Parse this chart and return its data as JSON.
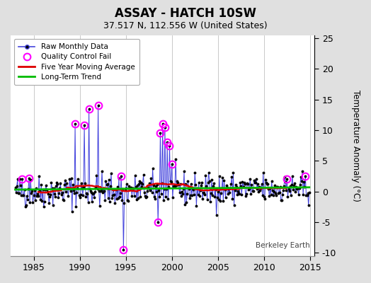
{
  "title": "ASSAY - HATCH 10SW",
  "subtitle": "37.517 N, 112.556 W (United States)",
  "ylabel_right": "Temperature Anomaly (°C)",
  "watermark": "Berkeley Earth",
  "xlim": [
    1982.5,
    2015.5
  ],
  "ylim": [
    -10.5,
    25.5
  ],
  "yticks": [
    -10,
    -5,
    0,
    5,
    10,
    15,
    20,
    25
  ],
  "xticks": [
    1985,
    1990,
    1995,
    2000,
    2005,
    2010,
    2015
  ],
  "bg_color": "#e0e0e0",
  "plot_bg_color": "#ffffff",
  "grid_color": "#c0c0c0",
  "raw_line_color": "#4444dd",
  "raw_dot_color": "#000000",
  "qc_fail_color": "#ff00ff",
  "moving_avg_color": "#dd0000",
  "trend_color": "#00bb00",
  "seed": 42,
  "years_start": 1983.0,
  "years_end": 2014.917,
  "noise_std": 1.3,
  "spike_events": [
    {
      "year": 1989.5,
      "val": 11.0,
      "qc": true
    },
    {
      "year": 1990.5,
      "val": 10.8,
      "qc": true
    },
    {
      "year": 1991.0,
      "val": 13.5,
      "qc": true
    },
    {
      "year": 1992.0,
      "val": 14.0,
      "qc": true
    },
    {
      "year": 1994.75,
      "val": -9.5,
      "qc": true
    },
    {
      "year": 1998.5,
      "val": -5.0,
      "qc": true
    },
    {
      "year": 1998.75,
      "val": 9.5,
      "qc": true
    },
    {
      "year": 1999.0,
      "val": 11.0,
      "qc": true
    },
    {
      "year": 1999.25,
      "val": 10.5,
      "qc": true
    },
    {
      "year": 1999.5,
      "val": 8.0,
      "qc": true
    },
    {
      "year": 1999.75,
      "val": 7.5,
      "qc": true
    },
    {
      "year": 2000.0,
      "val": 4.5,
      "qc": true
    },
    {
      "year": 1983.75,
      "val": 2.0,
      "qc": true
    },
    {
      "year": 1984.5,
      "val": 2.2,
      "qc": true
    },
    {
      "year": 1994.5,
      "val": 2.5,
      "qc": true
    },
    {
      "year": 2012.5,
      "val": 2.0,
      "qc": true
    },
    {
      "year": 2014.5,
      "val": 2.5,
      "qc": true
    }
  ]
}
